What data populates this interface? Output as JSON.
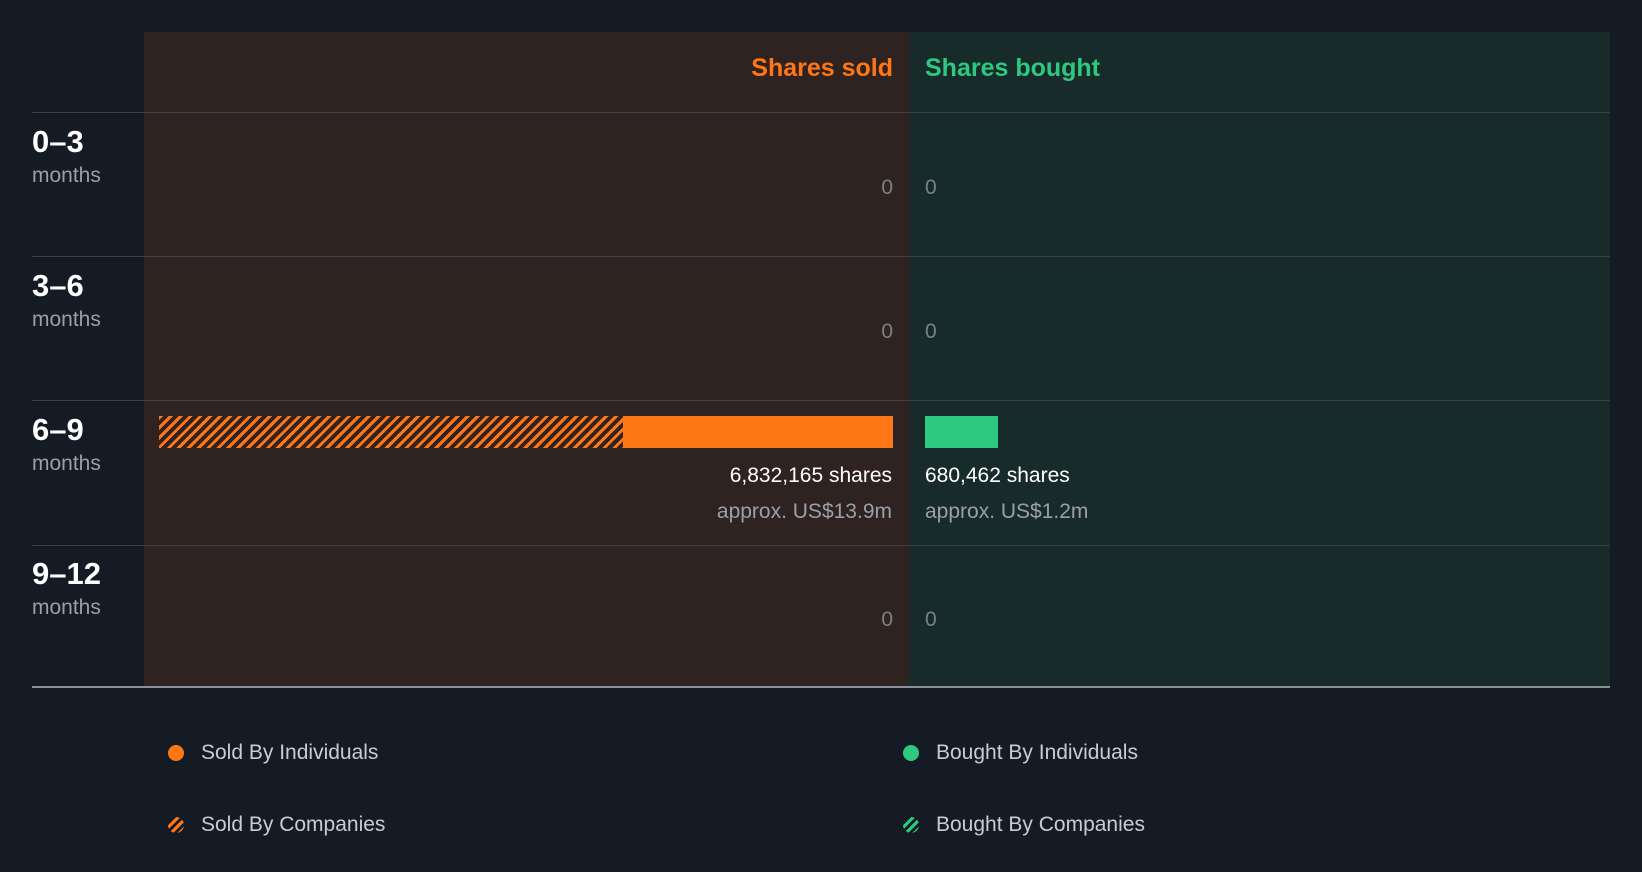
{
  "chart_data": {
    "type": "bar",
    "header": {
      "sold": "Shares sold",
      "bought": "Shares bought"
    },
    "periods": [
      {
        "range": "0–3",
        "unit": "months",
        "sold_label": "0",
        "bought_label": "0"
      },
      {
        "range": "3–6",
        "unit": "months",
        "sold_label": "0",
        "bought_label": "0"
      },
      {
        "range": "6–9",
        "unit": "months",
        "sold_shares": "6,832,165 shares",
        "sold_value": "approx. US$13.9m",
        "bought_shares": "680,462 shares",
        "bought_value": "approx. US$1.2m"
      },
      {
        "range": "9–12",
        "unit": "months",
        "sold_label": "0",
        "bought_label": "0"
      }
    ],
    "series": [
      {
        "name": "Sold By Individuals",
        "values": [
          0,
          0,
          2513000,
          0
        ]
      },
      {
        "name": "Sold By Companies",
        "values": [
          0,
          0,
          4319165,
          0
        ]
      },
      {
        "name": "Bought By Individuals",
        "values": [
          0,
          0,
          680462,
          0
        ]
      },
      {
        "name": "Bought By Companies",
        "values": [
          0,
          0,
          0,
          0
        ]
      }
    ],
    "totals": {
      "sold": 6832165,
      "bought": 680462
    },
    "colors": {
      "sold": "#ff7617",
      "bought": "#2dc97e"
    },
    "legend": {
      "sold_individuals": "Sold By Individuals",
      "sold_companies": "Sold By Companies",
      "bought_individuals": "Bought By Individuals",
      "bought_companies": "Bought By Companies"
    }
  }
}
